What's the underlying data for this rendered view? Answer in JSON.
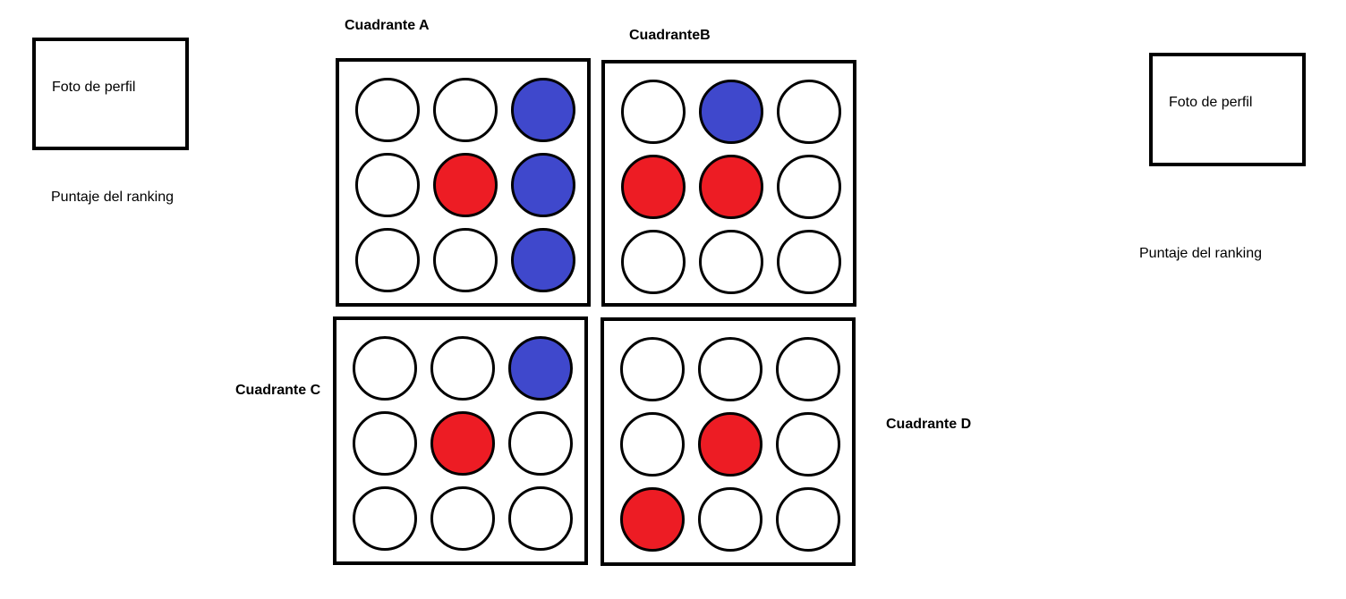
{
  "left_player": {
    "photo_label": "Foto de perfil",
    "ranking_label": "Puntaje del ranking"
  },
  "right_player": {
    "photo_label": "Foto de perfil",
    "ranking_label": "Puntaje del ranking"
  },
  "colors": {
    "empty": "#ffffff",
    "red": "#ed1c24",
    "blue": "#3f48cc"
  },
  "quadrants": {
    "a": {
      "label": "Cuadrante A",
      "cells": [
        [
          "empty",
          "empty",
          "blue"
        ],
        [
          "empty",
          "red",
          "blue"
        ],
        [
          "empty",
          "empty",
          "blue"
        ]
      ]
    },
    "b": {
      "label": "CuadranteB",
      "cells": [
        [
          "empty",
          "blue",
          "empty"
        ],
        [
          "red",
          "red",
          "empty"
        ],
        [
          "empty",
          "empty",
          "empty"
        ]
      ]
    },
    "c": {
      "label": "Cuadrante C",
      "cells": [
        [
          "empty",
          "empty",
          "blue"
        ],
        [
          "empty",
          "red",
          "empty"
        ],
        [
          "empty",
          "empty",
          "empty"
        ]
      ]
    },
    "d": {
      "label": "Cuadrante D",
      "cells": [
        [
          "empty",
          "empty",
          "empty"
        ],
        [
          "empty",
          "red",
          "empty"
        ],
        [
          "red",
          "empty",
          "empty"
        ]
      ]
    }
  }
}
